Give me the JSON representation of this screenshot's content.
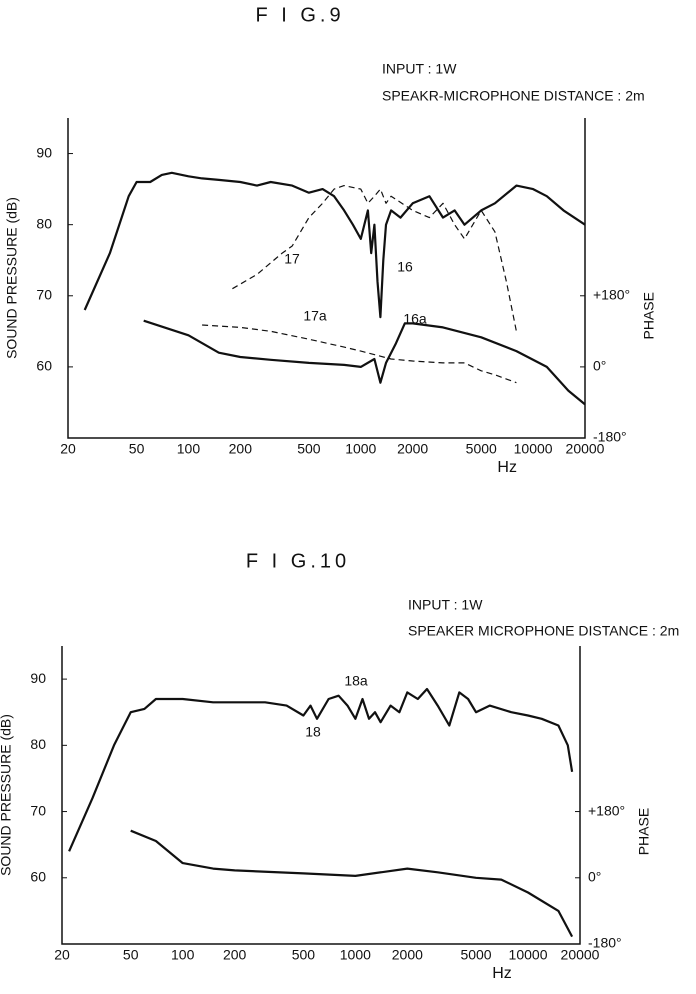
{
  "chart_data": [
    {
      "type": "line",
      "title": "F I G.9",
      "annotations": [
        "INPUT : 1W",
        "SPEAKR-MICROPHONE DISTANCE : 2m"
      ],
      "ylabel": "SOUND PRESSURE (dB)",
      "y2label": "PHASE",
      "xlabel": "Hz",
      "xscale": "log",
      "xlim": [
        20,
        20000
      ],
      "xticks": [
        20,
        50,
        100,
        200,
        500,
        1000,
        2000,
        5000,
        10000,
        20000
      ],
      "ylim": [
        50,
        95
      ],
      "yticks": [
        60,
        70,
        80,
        90
      ],
      "y2lim": [
        -180,
        630
      ],
      "y2ticks": [
        {
          "value": 180,
          "label": "+180°"
        },
        {
          "value": 0,
          "label": "0°"
        },
        {
          "value": -180,
          "label": "-180°"
        }
      ],
      "grid": false,
      "series": [
        {
          "name": "16",
          "color": "#111111",
          "dash": false,
          "x": [
            25,
            35,
            45,
            50,
            60,
            70,
            80,
            100,
            120,
            150,
            200,
            250,
            300,
            400,
            500,
            600,
            700,
            800,
            900,
            1000,
            1100,
            1150,
            1200,
            1250,
            1300,
            1350,
            1400,
            1500,
            1700,
            2000,
            2500,
            3000,
            3500,
            4000,
            5000,
            6000,
            8000,
            10000,
            12000,
            15000,
            20000
          ],
          "values": [
            68,
            76,
            84,
            86,
            86,
            87,
            87.3,
            86.8,
            86.5,
            86.3,
            86,
            85.5,
            86,
            85.5,
            84.5,
            85,
            84,
            82,
            80,
            78,
            82,
            76,
            80,
            72,
            67,
            75,
            80,
            82,
            81,
            83,
            84,
            81,
            82,
            80,
            82,
            83,
            85.5,
            85,
            84,
            82,
            80
          ]
        },
        {
          "name": "17",
          "color": "#111111",
          "dash": true,
          "x": [
            180,
            250,
            350,
            400,
            500,
            600,
            700,
            800,
            1000,
            1100,
            1200,
            1300,
            1400,
            1500,
            2000,
            2500,
            3000,
            3500,
            4000,
            5000,
            6000,
            7000,
            8000
          ],
          "values": [
            71,
            73,
            76,
            77,
            81,
            83,
            85,
            85.5,
            85,
            83,
            84,
            85,
            83,
            84,
            82,
            81,
            83,
            80,
            78,
            82,
            79,
            72,
            65
          ]
        },
        {
          "name": "16a",
          "color": "#111111",
          "dash": false,
          "axis": "y2",
          "x": [
            55,
            100,
            150,
            200,
            300,
            500,
            800,
            1000,
            1200,
            1300,
            1400,
            1600,
            1800,
            2000,
            3000,
            5000,
            8000,
            12000,
            16000,
            20000
          ],
          "values": [
            117,
            80,
            36,
            25,
            18,
            10,
            5,
            0,
            20,
            -40,
            10,
            60,
            110,
            110,
            100,
            75,
            40,
            0,
            -60,
            -95
          ]
        },
        {
          "name": "17a",
          "color": "#111111",
          "dash": true,
          "axis": "y2",
          "x": [
            120,
            200,
            300,
            500,
            800,
            1000,
            1500,
            2000,
            3000,
            4000,
            5000,
            6000,
            8000
          ],
          "values": [
            106,
            100,
            90,
            70,
            50,
            40,
            20,
            15,
            10,
            10,
            -10,
            -20,
            -40
          ]
        }
      ]
    },
    {
      "type": "line",
      "title": "F I G.10",
      "annotations": [
        "INPUT : 1W",
        "SPEAKER MICROPHONE DISTANCE : 2m"
      ],
      "ylabel": "SOUND PRESSURE (dB)",
      "y2label": "PHASE",
      "xlabel": "Hz",
      "xscale": "log",
      "xlim": [
        20,
        20000
      ],
      "xticks": [
        20,
        50,
        100,
        200,
        500,
        1000,
        2000,
        5000,
        10000,
        20000
      ],
      "ylim": [
        50,
        95
      ],
      "yticks": [
        60,
        70,
        80,
        90
      ],
      "y2lim": [
        -180,
        630
      ],
      "y2ticks": [
        {
          "value": 180,
          "label": "+180°"
        },
        {
          "value": 0,
          "label": "0°"
        },
        {
          "value": -180,
          "label": "-180°"
        }
      ],
      "grid": false,
      "series": [
        {
          "name": "18",
          "color": "#111111",
          "dash": false,
          "x": [
            22,
            30,
            40,
            50,
            60,
            70,
            100,
            150,
            200,
            300,
            400,
            500,
            550,
            600,
            700,
            800,
            900,
            1000,
            1100,
            1200,
            1300,
            1400,
            1600,
            1800,
            2000,
            2300,
            2600,
            3000,
            3500,
            4000,
            4500,
            5000,
            6000,
            8000,
            10000,
            12000,
            15000,
            17000,
            18000
          ],
          "values": [
            64,
            72,
            80,
            85,
            85.5,
            87,
            87,
            86.5,
            86.5,
            86.5,
            86,
            84.5,
            86,
            84,
            87,
            87.5,
            86,
            84,
            87,
            84,
            85,
            83.5,
            86,
            85,
            88,
            87,
            88.5,
            86,
            83,
            88,
            87,
            85,
            86,
            85,
            84.5,
            84,
            83,
            80,
            76
          ]
        },
        {
          "name": "18a",
          "color": "#111111",
          "dash": false,
          "axis": "y2",
          "x": [
            50,
            70,
            100,
            150,
            200,
            500,
            1000,
            2000,
            3000,
            5000,
            7000,
            10000,
            15000,
            18000
          ],
          "values": [
            128,
            100,
            40,
            25,
            20,
            12,
            5,
            25,
            15,
            0,
            -5,
            -40,
            -90,
            -160
          ]
        }
      ]
    }
  ]
}
